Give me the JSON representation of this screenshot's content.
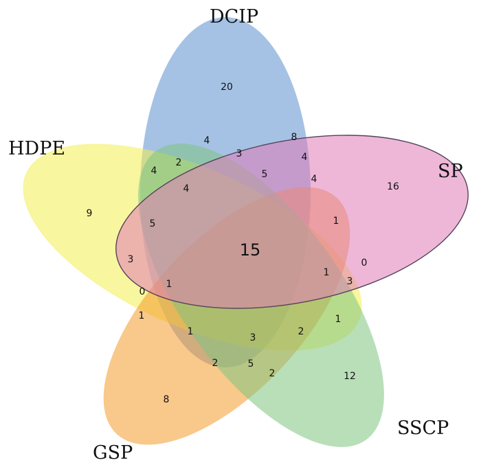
{
  "sets": [
    {
      "name": "DCIP",
      "color": "#5b8fd0"
    },
    {
      "name": "HDPE",
      "color": "#f3ee4f"
    },
    {
      "name": "GSP",
      "color": "#f49a2c"
    },
    {
      "name": "SSCP",
      "color": "#7fc47f"
    },
    {
      "name": "SP",
      "color": "#e07bb8"
    }
  ],
  "regions": [
    {
      "id": "dcip_only",
      "value": "20"
    },
    {
      "id": "hdpe_only",
      "value": "9"
    },
    {
      "id": "sp_only",
      "value": "16"
    },
    {
      "id": "sscp_only",
      "value": "12"
    },
    {
      "id": "gsp_only",
      "value": "8"
    },
    {
      "id": "all_five",
      "value": "15"
    },
    {
      "id": "r1",
      "value": "8"
    },
    {
      "id": "r2",
      "value": "4"
    },
    {
      "id": "r3",
      "value": "3"
    },
    {
      "id": "r4",
      "value": "4"
    },
    {
      "id": "r5",
      "value": "2"
    },
    {
      "id": "r6",
      "value": "4"
    },
    {
      "id": "r7",
      "value": "5"
    },
    {
      "id": "r8",
      "value": "4"
    },
    {
      "id": "r9",
      "value": "4"
    },
    {
      "id": "r10",
      "value": "5"
    },
    {
      "id": "r11",
      "value": "1"
    },
    {
      "id": "r12",
      "value": "3"
    },
    {
      "id": "r13",
      "value": "0"
    },
    {
      "id": "r14",
      "value": "0"
    },
    {
      "id": "r15",
      "value": "1"
    },
    {
      "id": "r16",
      "value": "1"
    },
    {
      "id": "r17",
      "value": "3"
    },
    {
      "id": "r18",
      "value": "1"
    },
    {
      "id": "r19",
      "value": "1"
    },
    {
      "id": "r20",
      "value": "1"
    },
    {
      "id": "r21",
      "value": "3"
    },
    {
      "id": "r22",
      "value": "2"
    },
    {
      "id": "r23",
      "value": "2"
    },
    {
      "id": "r24",
      "value": "5"
    },
    {
      "id": "r25",
      "value": "2"
    }
  ]
}
